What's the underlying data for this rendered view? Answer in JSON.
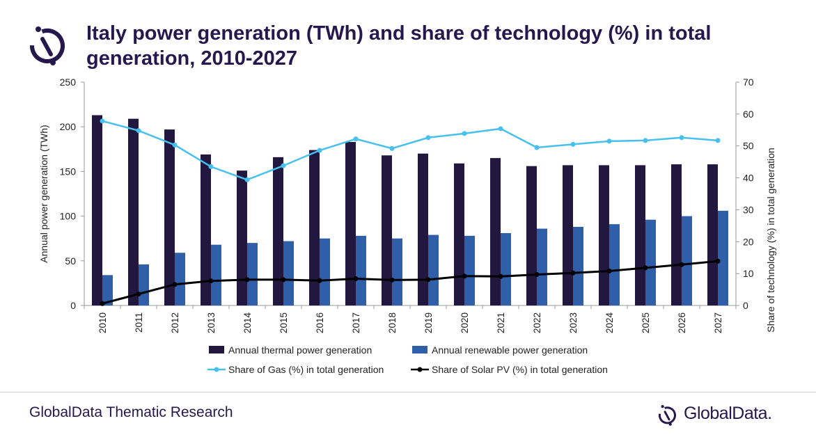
{
  "title": "Italy power generation (TWh) and share of technology (%) in total generation, 2010-2027",
  "footer": {
    "source": "GlobalData Thematic Research",
    "brand": "GlobalData."
  },
  "icons": {
    "logo": "globaldata-logo-icon"
  },
  "colors": {
    "thermal": "#22183f",
    "renewable": "#2e5fa8",
    "gas": "#47c0ee",
    "solar": "#000000",
    "title": "#24184f"
  },
  "chart_data": {
    "type": "bar",
    "categories": [
      "2010",
      "2011",
      "2012",
      "2013",
      "2014",
      "2015",
      "2016",
      "2017",
      "2018",
      "2019",
      "2020",
      "2021",
      "2022",
      "2023",
      "2024",
      "2025",
      "2026",
      "2027"
    ],
    "ylabel": "Annual power generation (TWh)",
    "y2label": "Share of technology (%) in total generation",
    "ylim": [
      0,
      250
    ],
    "y2lim": [
      0,
      70
    ],
    "yticks": [
      0,
      50,
      100,
      150,
      200,
      250
    ],
    "y2ticks": [
      0,
      10,
      20,
      30,
      40,
      50,
      60,
      70
    ],
    "grid": false,
    "legend_position": "bottom",
    "series": [
      {
        "name": "Annual thermal power generation",
        "kind": "bar",
        "axis": "left",
        "values": [
          213,
          209,
          197,
          169,
          151,
          166,
          174,
          183,
          168,
          170,
          159,
          165,
          156,
          157,
          157,
          157,
          158,
          158
        ]
      },
      {
        "name": "Annual renewable power generation",
        "kind": "bar",
        "axis": "left",
        "values": [
          34,
          46,
          59,
          68,
          70,
          72,
          75,
          78,
          75,
          79,
          78,
          81,
          86,
          88,
          91,
          96,
          100,
          106
        ]
      },
      {
        "name": "Share of Gas (%) in total generation",
        "kind": "line",
        "axis": "right",
        "values": [
          57.8,
          54.8,
          50.3,
          43.5,
          39.4,
          43.8,
          48.6,
          52.2,
          49.2,
          52.6,
          53.9,
          55.4,
          49.5,
          50.5,
          51.5,
          51.7,
          52.6,
          51.7
        ]
      },
      {
        "name": "Share of Solar PV (%) in total generation",
        "kind": "line",
        "axis": "right",
        "values": [
          0.6,
          3.6,
          6.6,
          7.7,
          8.1,
          8.1,
          7.8,
          8.4,
          8.0,
          8.1,
          9.2,
          9.1,
          9.7,
          10.2,
          10.8,
          11.8,
          12.8,
          13.9
        ]
      }
    ]
  }
}
